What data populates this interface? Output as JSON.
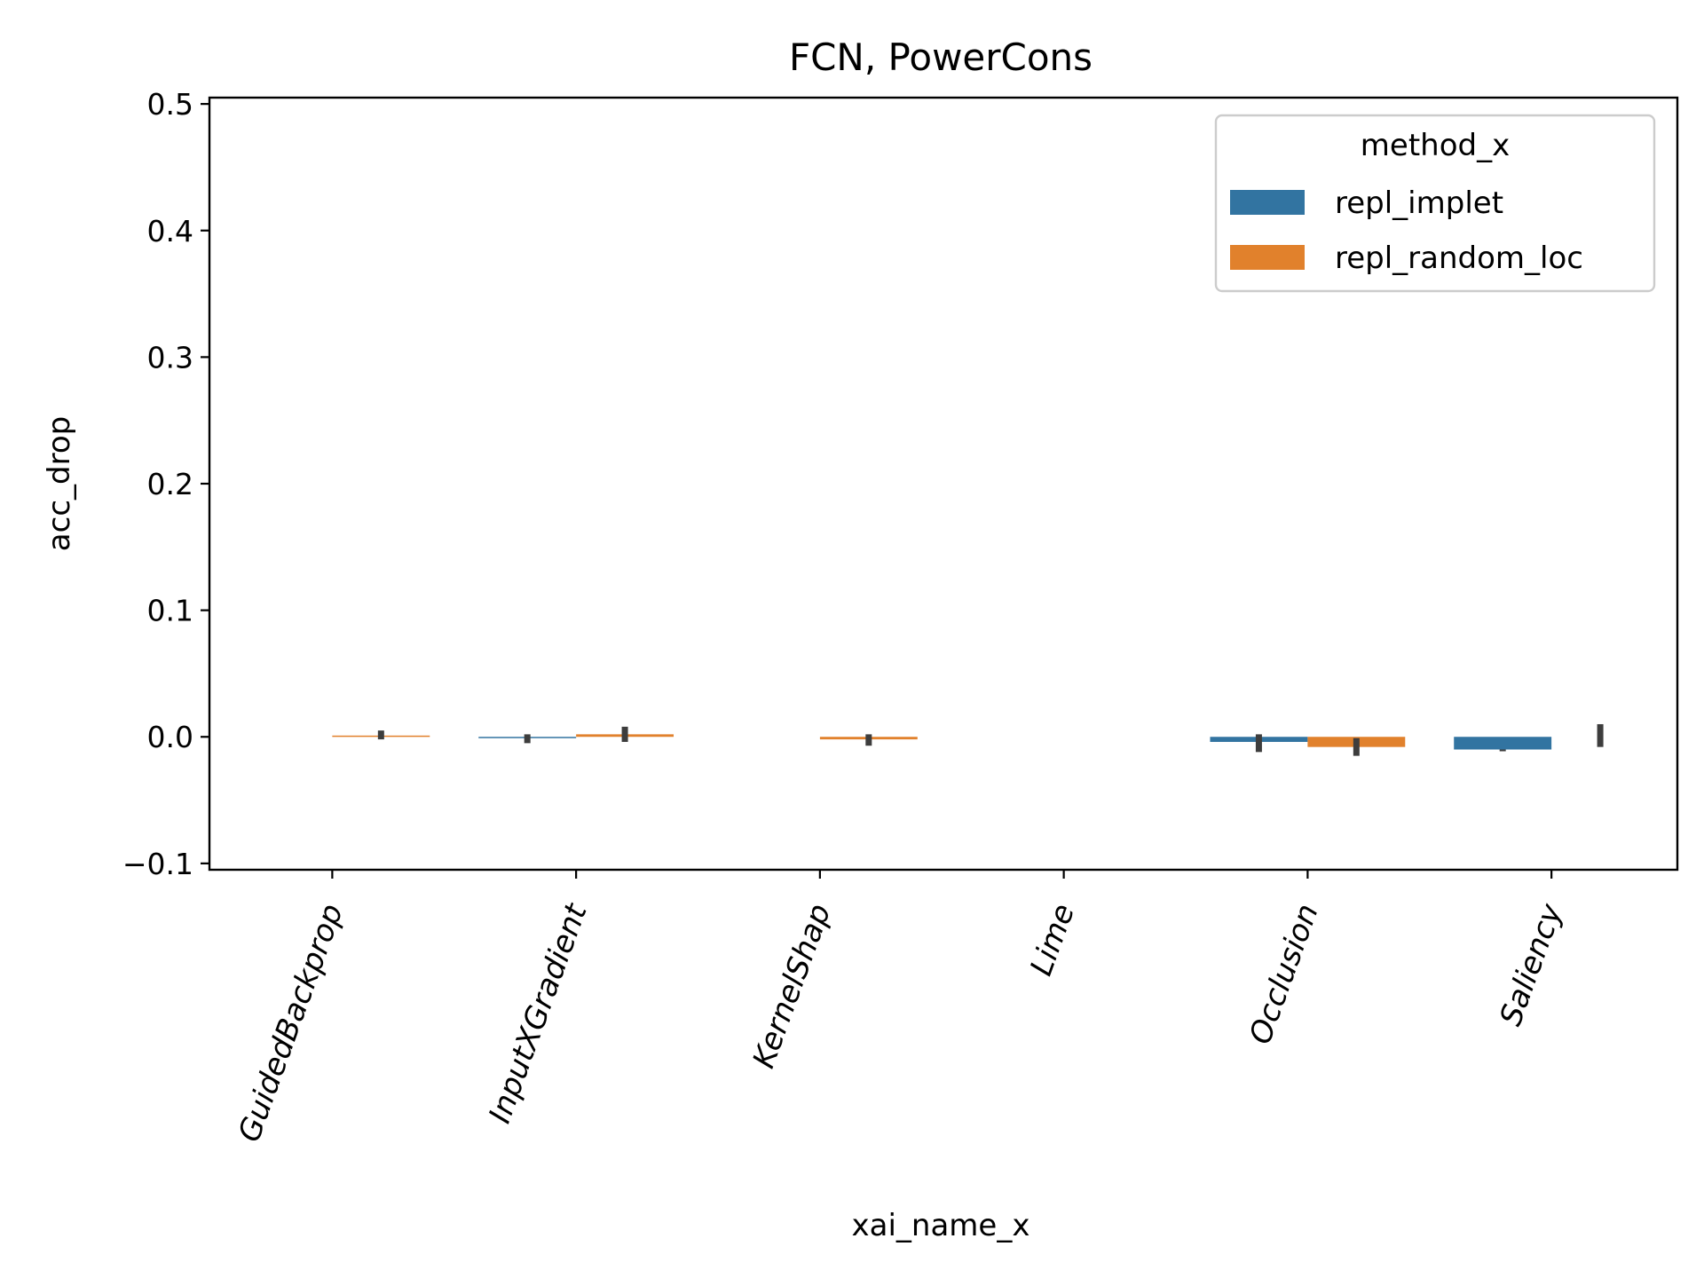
{
  "chart_data": {
    "type": "bar",
    "title": "FCN, PowerCons",
    "xlabel": "xai_name_x",
    "ylabel": "acc_drop",
    "ylim": [
      -0.105,
      0.505
    ],
    "yticks": [
      -0.1,
      0.0,
      0.1,
      0.2,
      0.3,
      0.4,
      0.5
    ],
    "ytick_labels": [
      "−0.1",
      "0.0",
      "0.1",
      "0.2",
      "0.3",
      "0.4",
      "0.5"
    ],
    "categories": [
      "GuidedBackprop",
      "InputXGradient",
      "KernelShap",
      "Lime",
      "Occlusion",
      "Saliency"
    ],
    "grid": false,
    "legend": {
      "title": "method_x",
      "placement": "top-right"
    },
    "series": [
      {
        "name": "repl_implet",
        "color": "#3274a1",
        "values": [
          null,
          -0.001,
          null,
          null,
          -0.004,
          -0.01
        ],
        "err_low": [
          null,
          -0.005,
          null,
          null,
          -0.012,
          -0.01
        ],
        "err_high": [
          null,
          0.002,
          null,
          null,
          0.002,
          -0.01
        ]
      },
      {
        "name": "repl_random_loc",
        "color": "#e1812c",
        "values": [
          0.001,
          0.002,
          -0.002,
          null,
          -0.008,
          null
        ],
        "err_low": [
          -0.002,
          -0.004,
          -0.007,
          null,
          -0.015,
          null
        ],
        "err_high": [
          0.005,
          0.008,
          0.002,
          null,
          -0.001,
          null
        ]
      }
    ],
    "extra_errorbars": [
      {
        "category": "Saliency",
        "offset": "right",
        "low": -0.008,
        "high": 0.01
      }
    ]
  }
}
